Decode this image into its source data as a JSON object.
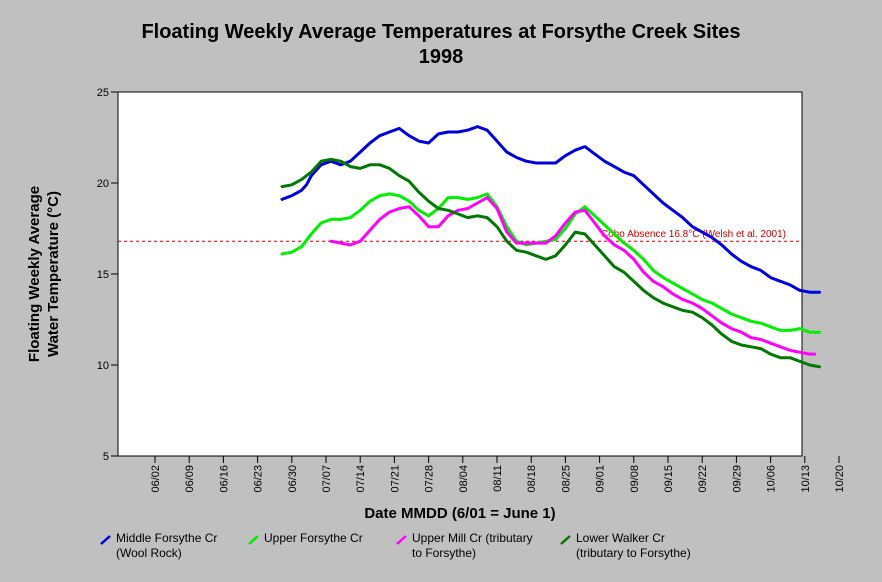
{
  "chart_data": {
    "type": "line",
    "title": "Floating Weekly Average Temperatures at Forsythe Creek Sites",
    "subtitle": "1998",
    "xlabel": "Date MMDD (6/01 = June 1)",
    "ylabel": "Floating Weekly Average\nWater Temperature (°C)",
    "ylim": [
      5,
      25
    ],
    "yticks": [
      5,
      10,
      15,
      20,
      25
    ],
    "x_tick_labels": [
      "06/02",
      "06/09",
      "06/16",
      "06/23",
      "06/30",
      "07/07",
      "07/14",
      "07/21",
      "07/28",
      "08/04",
      "08/11",
      "08/18",
      "08/25",
      "09/01",
      "09/08",
      "09/15",
      "09/22",
      "09/29",
      "10/06",
      "10/13",
      "10/20"
    ],
    "x_start_label": "06/02",
    "grid": false,
    "legend_position": "bottom",
    "reference_line": {
      "value": 16.8,
      "label": "Coho Absence 16.8°C (Welsh et al. 2001)",
      "color": "#cc0000"
    },
    "series": [
      {
        "name": "Middle Forsythe Cr\n(Wool Rock)",
        "color": "#0000dd",
        "x": [
          26,
          28,
          30,
          31,
          32,
          34,
          36,
          38,
          40,
          42,
          44,
          46,
          48,
          50,
          52,
          54,
          56,
          58,
          60,
          62,
          64,
          66,
          68,
          70,
          72,
          74,
          76,
          78,
          80,
          82,
          84,
          86,
          88,
          90,
          92,
          94,
          96,
          98,
          100,
          102,
          104,
          106,
          108,
          110,
          112,
          114,
          116,
          118,
          120,
          122,
          124,
          126,
          128,
          130,
          132,
          134,
          136
        ],
        "y": [
          19.1,
          19.3,
          19.6,
          19.9,
          20.4,
          21.0,
          21.2,
          21.0,
          21.2,
          21.7,
          22.2,
          22.6,
          22.8,
          23.0,
          22.6,
          22.3,
          22.2,
          22.7,
          22.8,
          22.8,
          22.9,
          23.1,
          22.9,
          22.3,
          21.7,
          21.4,
          21.2,
          21.1,
          21.1,
          21.1,
          21.5,
          21.8,
          22.0,
          21.6,
          21.2,
          20.9,
          20.6,
          20.4,
          19.9,
          19.4,
          18.9,
          18.5,
          18.1,
          17.6,
          17.3,
          17.0,
          16.6,
          16.1,
          15.7,
          15.4,
          15.2,
          14.8,
          14.6,
          14.4,
          14.1,
          14.0,
          14.0
        ]
      },
      {
        "name": "Upper Forsythe Cr",
        "color": "#00ee00",
        "x": [
          26,
          28,
          30,
          32,
          34,
          36,
          38,
          40,
          42,
          44,
          46,
          48,
          50,
          52,
          54,
          56,
          58,
          60,
          62,
          64,
          66,
          68,
          70,
          72,
          74,
          76,
          78,
          80,
          82,
          84,
          86,
          88,
          90,
          92,
          94,
          96,
          98,
          100,
          102,
          104,
          106,
          108,
          110,
          112,
          114,
          116,
          118,
          120,
          122,
          124,
          126,
          128,
          130,
          132,
          134,
          136
        ],
        "y": [
          16.1,
          16.2,
          16.5,
          17.2,
          17.8,
          18.0,
          18.0,
          18.1,
          18.5,
          19.0,
          19.3,
          19.4,
          19.3,
          19.0,
          18.5,
          18.2,
          18.6,
          19.2,
          19.2,
          19.1,
          19.2,
          19.4,
          18.7,
          17.6,
          16.8,
          16.6,
          16.7,
          16.8,
          16.9,
          17.5,
          18.3,
          18.7,
          18.2,
          17.7,
          17.2,
          16.7,
          16.3,
          15.8,
          15.2,
          14.8,
          14.5,
          14.2,
          13.9,
          13.6,
          13.4,
          13.1,
          12.8,
          12.6,
          12.4,
          12.3,
          12.1,
          11.9,
          11.9,
          12.0,
          11.8,
          11.8
        ]
      },
      {
        "name": "Upper Mill Cr (tributary\nto Forsythe)",
        "color": "#ff00ff",
        "x": [
          36,
          38,
          40,
          42,
          44,
          46,
          48,
          50,
          52,
          54,
          56,
          58,
          60,
          62,
          64,
          66,
          68,
          70,
          72,
          74,
          76,
          78,
          80,
          82,
          84,
          86,
          88,
          90,
          92,
          94,
          96,
          98,
          100,
          102,
          104,
          106,
          108,
          110,
          112,
          114,
          116,
          118,
          120,
          122,
          124,
          126,
          128,
          130,
          132,
          134,
          135
        ],
        "y": [
          16.8,
          16.7,
          16.6,
          16.8,
          17.4,
          18.0,
          18.4,
          18.6,
          18.7,
          18.2,
          17.6,
          17.6,
          18.2,
          18.5,
          18.6,
          18.9,
          19.2,
          18.6,
          17.3,
          16.7,
          16.7,
          16.7,
          16.7,
          17.1,
          17.8,
          18.4,
          18.5,
          17.8,
          17.1,
          16.6,
          16.3,
          15.8,
          15.1,
          14.6,
          14.3,
          13.9,
          13.6,
          13.4,
          13.1,
          12.7,
          12.3,
          12.0,
          11.8,
          11.5,
          11.4,
          11.2,
          11.0,
          10.8,
          10.7,
          10.6,
          10.6
        ]
      },
      {
        "name": "Lower Walker Cr\n(tributary to Forsythe)",
        "color": "#007700",
        "x": [
          26,
          28,
          30,
          32,
          34,
          36,
          38,
          40,
          42,
          44,
          46,
          48,
          50,
          52,
          54,
          56,
          58,
          60,
          62,
          64,
          66,
          68,
          70,
          72,
          74,
          76,
          78,
          80,
          82,
          84,
          86,
          88,
          90,
          92,
          94,
          96,
          98,
          100,
          102,
          104,
          106,
          108,
          110,
          112,
          114,
          116,
          118,
          120,
          122,
          124,
          126,
          128,
          130,
          132,
          134,
          136
        ],
        "y": [
          19.8,
          19.9,
          20.2,
          20.6,
          21.2,
          21.3,
          21.2,
          20.9,
          20.8,
          21.0,
          21.0,
          20.8,
          20.4,
          20.1,
          19.5,
          19.0,
          18.6,
          18.5,
          18.3,
          18.1,
          18.2,
          18.1,
          17.6,
          16.8,
          16.3,
          16.2,
          16.0,
          15.8,
          16.0,
          16.6,
          17.3,
          17.2,
          16.6,
          16.0,
          15.4,
          15.1,
          14.6,
          14.1,
          13.7,
          13.4,
          13.2,
          13.0,
          12.9,
          12.6,
          12.2,
          11.7,
          11.3,
          11.1,
          11.0,
          10.9,
          10.6,
          10.4,
          10.4,
          10.2,
          10.0,
          9.9
        ]
      }
    ]
  }
}
